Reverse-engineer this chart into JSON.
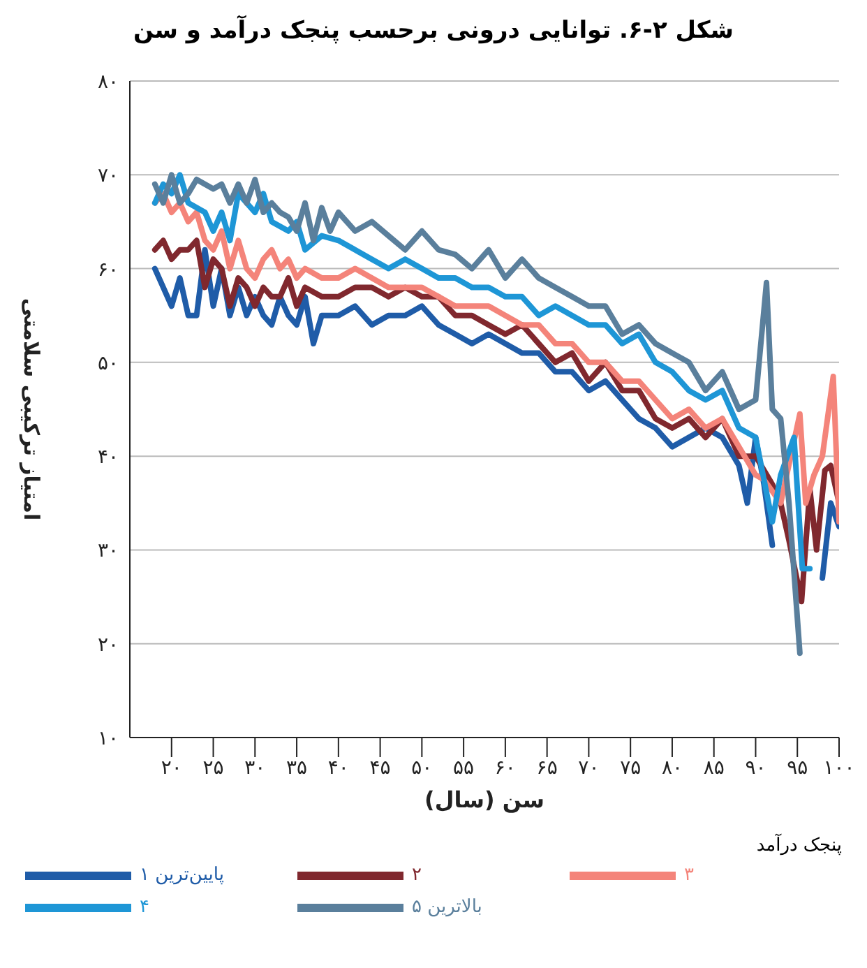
{
  "chart_data": {
    "type": "line",
    "title": "شکل ۲-۶. توانایی درونی برحسب پنجک درآمد و سن",
    "xlabel": "سن (سال)",
    "ylabel": "امتیاز ترکیبی سلامتی",
    "legend_title": "پنجک درآمد",
    "legend": "bottom",
    "grid": "y",
    "line_style": "solid",
    "marker": "none",
    "xlim": [
      15,
      100
    ],
    "xticks": [
      {
        "value": 20,
        "label": "۲۰"
      },
      {
        "value": 25,
        "label": "۲۵"
      },
      {
        "value": 30,
        "label": "۳۰"
      },
      {
        "value": 35,
        "label": "۳۵"
      },
      {
        "value": 40,
        "label": "۴۰"
      },
      {
        "value": 45,
        "label": "۴۵"
      },
      {
        "value": 50,
        "label": "۵۰"
      },
      {
        "value": 55,
        "label": "۵۵"
      },
      {
        "value": 60,
        "label": "۶۰"
      },
      {
        "value": 65,
        "label": "۶۵"
      },
      {
        "value": 70,
        "label": "۷۰"
      },
      {
        "value": 75,
        "label": "۷۵"
      },
      {
        "value": 80,
        "label": "۸۰"
      },
      {
        "value": 85,
        "label": "۸۵"
      },
      {
        "value": 90,
        "label": "۹۰"
      },
      {
        "value": 95,
        "label": "۹۵"
      },
      {
        "value": 100,
        "label": "۱۰۰"
      }
    ],
    "ylim": [
      10,
      80
    ],
    "yticks": [
      {
        "value": 10,
        "label": "۱۰"
      },
      {
        "value": 20,
        "label": "۲۰"
      },
      {
        "value": 30,
        "label": "۳۰"
      },
      {
        "value": 40,
        "label": "۴۰"
      },
      {
        "value": 50,
        "label": "۵۰"
      },
      {
        "value": 60,
        "label": "۶۰"
      },
      {
        "value": 70,
        "label": "۷۰"
      },
      {
        "value": 80,
        "label": "۸۰"
      }
    ],
    "series": [
      {
        "name": "پایین‌ترین ۱",
        "color": "#1f5ca8",
        "x": [
          18,
          19,
          20,
          21,
          22,
          23,
          24,
          25,
          26,
          27,
          28,
          29,
          30,
          31,
          32,
          33,
          34,
          35,
          36,
          37,
          38,
          40,
          42,
          44,
          46,
          48,
          50,
          52,
          54,
          56,
          58,
          60,
          62,
          64,
          66,
          68,
          70,
          72,
          74,
          76,
          78,
          80,
          82,
          84,
          86,
          88,
          89,
          90,
          91,
          92,
          95,
          98,
          99,
          100
        ],
        "values": [
          60,
          58,
          56,
          59,
          55,
          55,
          62,
          56,
          60,
          55,
          58,
          55,
          57,
          55,
          54,
          57,
          55,
          54,
          57,
          52,
          55,
          55,
          56,
          54,
          55,
          55,
          56,
          54,
          53,
          52,
          53,
          52,
          51,
          51,
          49,
          49,
          47,
          48,
          46,
          44,
          43,
          41,
          42,
          43,
          42,
          39,
          35,
          42,
          37,
          30.5,
          null,
          27,
          35,
          32.5
        ]
      },
      {
        "name": "۲",
        "color": "#80282e",
        "x": [
          18,
          19,
          20,
          21,
          22,
          23,
          24,
          25,
          26,
          27,
          28,
          29,
          30,
          31,
          32,
          33,
          34,
          35,
          36,
          38,
          40,
          42,
          44,
          46,
          48,
          50,
          52,
          54,
          56,
          58,
          60,
          62,
          64,
          66,
          68,
          70,
          72,
          74,
          76,
          78,
          80,
          82,
          84,
          86,
          88,
          90,
          92,
          93,
          94,
          95.5,
          96.5,
          97.3,
          98.3,
          99,
          100
        ],
        "values": [
          62,
          63,
          61,
          62,
          62,
          63,
          58,
          61,
          60,
          56,
          59,
          58,
          56,
          58,
          57,
          57,
          59,
          56,
          58,
          57,
          57,
          58,
          58,
          57,
          58,
          57,
          57,
          55,
          55,
          54,
          53,
          54,
          52,
          50,
          51,
          48,
          50,
          47,
          47,
          44,
          43,
          44,
          42,
          44,
          40,
          40,
          37,
          35,
          31,
          24.5,
          36.5,
          30,
          38.5,
          39,
          35
        ]
      },
      {
        "name": "۳",
        "color": "#f4847a",
        "x": [
          18,
          19,
          20,
          21,
          22,
          23,
          24,
          25,
          26,
          27,
          28,
          29,
          30,
          31,
          32,
          33,
          34,
          35,
          36,
          38,
          40,
          42,
          44,
          46,
          48,
          50,
          52,
          54,
          56,
          58,
          60,
          62,
          64,
          66,
          68,
          70,
          72,
          74,
          76,
          78,
          80,
          82,
          84,
          86,
          88,
          90,
          91,
          93,
          95.3,
          96,
          97,
          98,
          99.3,
          100
        ],
        "values": [
          67,
          68,
          66,
          67,
          65,
          66,
          63,
          62,
          64,
          60,
          63,
          60,
          59,
          61,
          62,
          60,
          61,
          59,
          60,
          59,
          59,
          60,
          59,
          58,
          58,
          58,
          57,
          56,
          56,
          56,
          55,
          54,
          54,
          52,
          52,
          50,
          50,
          48,
          48,
          46,
          44,
          45,
          43,
          44,
          41,
          38,
          37.5,
          35,
          44.5,
          35,
          38,
          40,
          48.5,
          33
        ]
      },
      {
        "name": "۴",
        "color": "#1e96d6",
        "x": [
          18,
          19,
          20,
          21,
          22,
          24,
          25,
          26,
          27,
          28,
          29,
          30,
          31,
          32,
          34,
          35,
          36,
          38,
          40,
          42,
          44,
          46,
          48,
          50,
          52,
          54,
          56,
          58,
          60,
          62,
          64,
          66,
          68,
          70,
          72,
          74,
          76,
          78,
          80,
          82,
          84,
          86,
          88,
          90,
          92,
          93,
          94.6,
          95.6,
          96.5
        ],
        "values": [
          67,
          69,
          68,
          70,
          67,
          66,
          64,
          66,
          63,
          68,
          67,
          66,
          68,
          65,
          64,
          65,
          62,
          63.5,
          63,
          62,
          61,
          60,
          61,
          60,
          59,
          59,
          58,
          58,
          57,
          57,
          55,
          56,
          55,
          54,
          54,
          52,
          53,
          50,
          49,
          47,
          46,
          47,
          43,
          42,
          33,
          38,
          42,
          28,
          28
        ]
      },
      {
        "name": "بالاترین ۵",
        "color": "#5a7f9c",
        "x": [
          18,
          19,
          20,
          21,
          22,
          23,
          24,
          25,
          26,
          27,
          28,
          29,
          30,
          31,
          32,
          33,
          34,
          35,
          36,
          37,
          38,
          39,
          40,
          42,
          44,
          46,
          48,
          50,
          52,
          54,
          56,
          58,
          60,
          62,
          64,
          66,
          68,
          70,
          72,
          74,
          76,
          78,
          80,
          82,
          84,
          86,
          88,
          90,
          91.3,
          92,
          93,
          94,
          95.3
        ],
        "values": [
          69,
          67,
          70,
          67,
          68,
          69.5,
          69,
          68.5,
          69,
          67,
          69,
          67,
          69.5,
          66,
          67,
          66,
          65.5,
          64,
          67,
          63,
          66.5,
          64,
          66,
          64,
          65,
          63.5,
          62,
          64,
          62,
          61.5,
          60,
          62,
          59,
          61,
          59,
          58,
          57,
          56,
          56,
          53,
          54,
          52,
          51,
          50,
          47,
          49,
          45,
          46,
          58.5,
          45,
          44,
          35,
          19
        ]
      }
    ]
  }
}
